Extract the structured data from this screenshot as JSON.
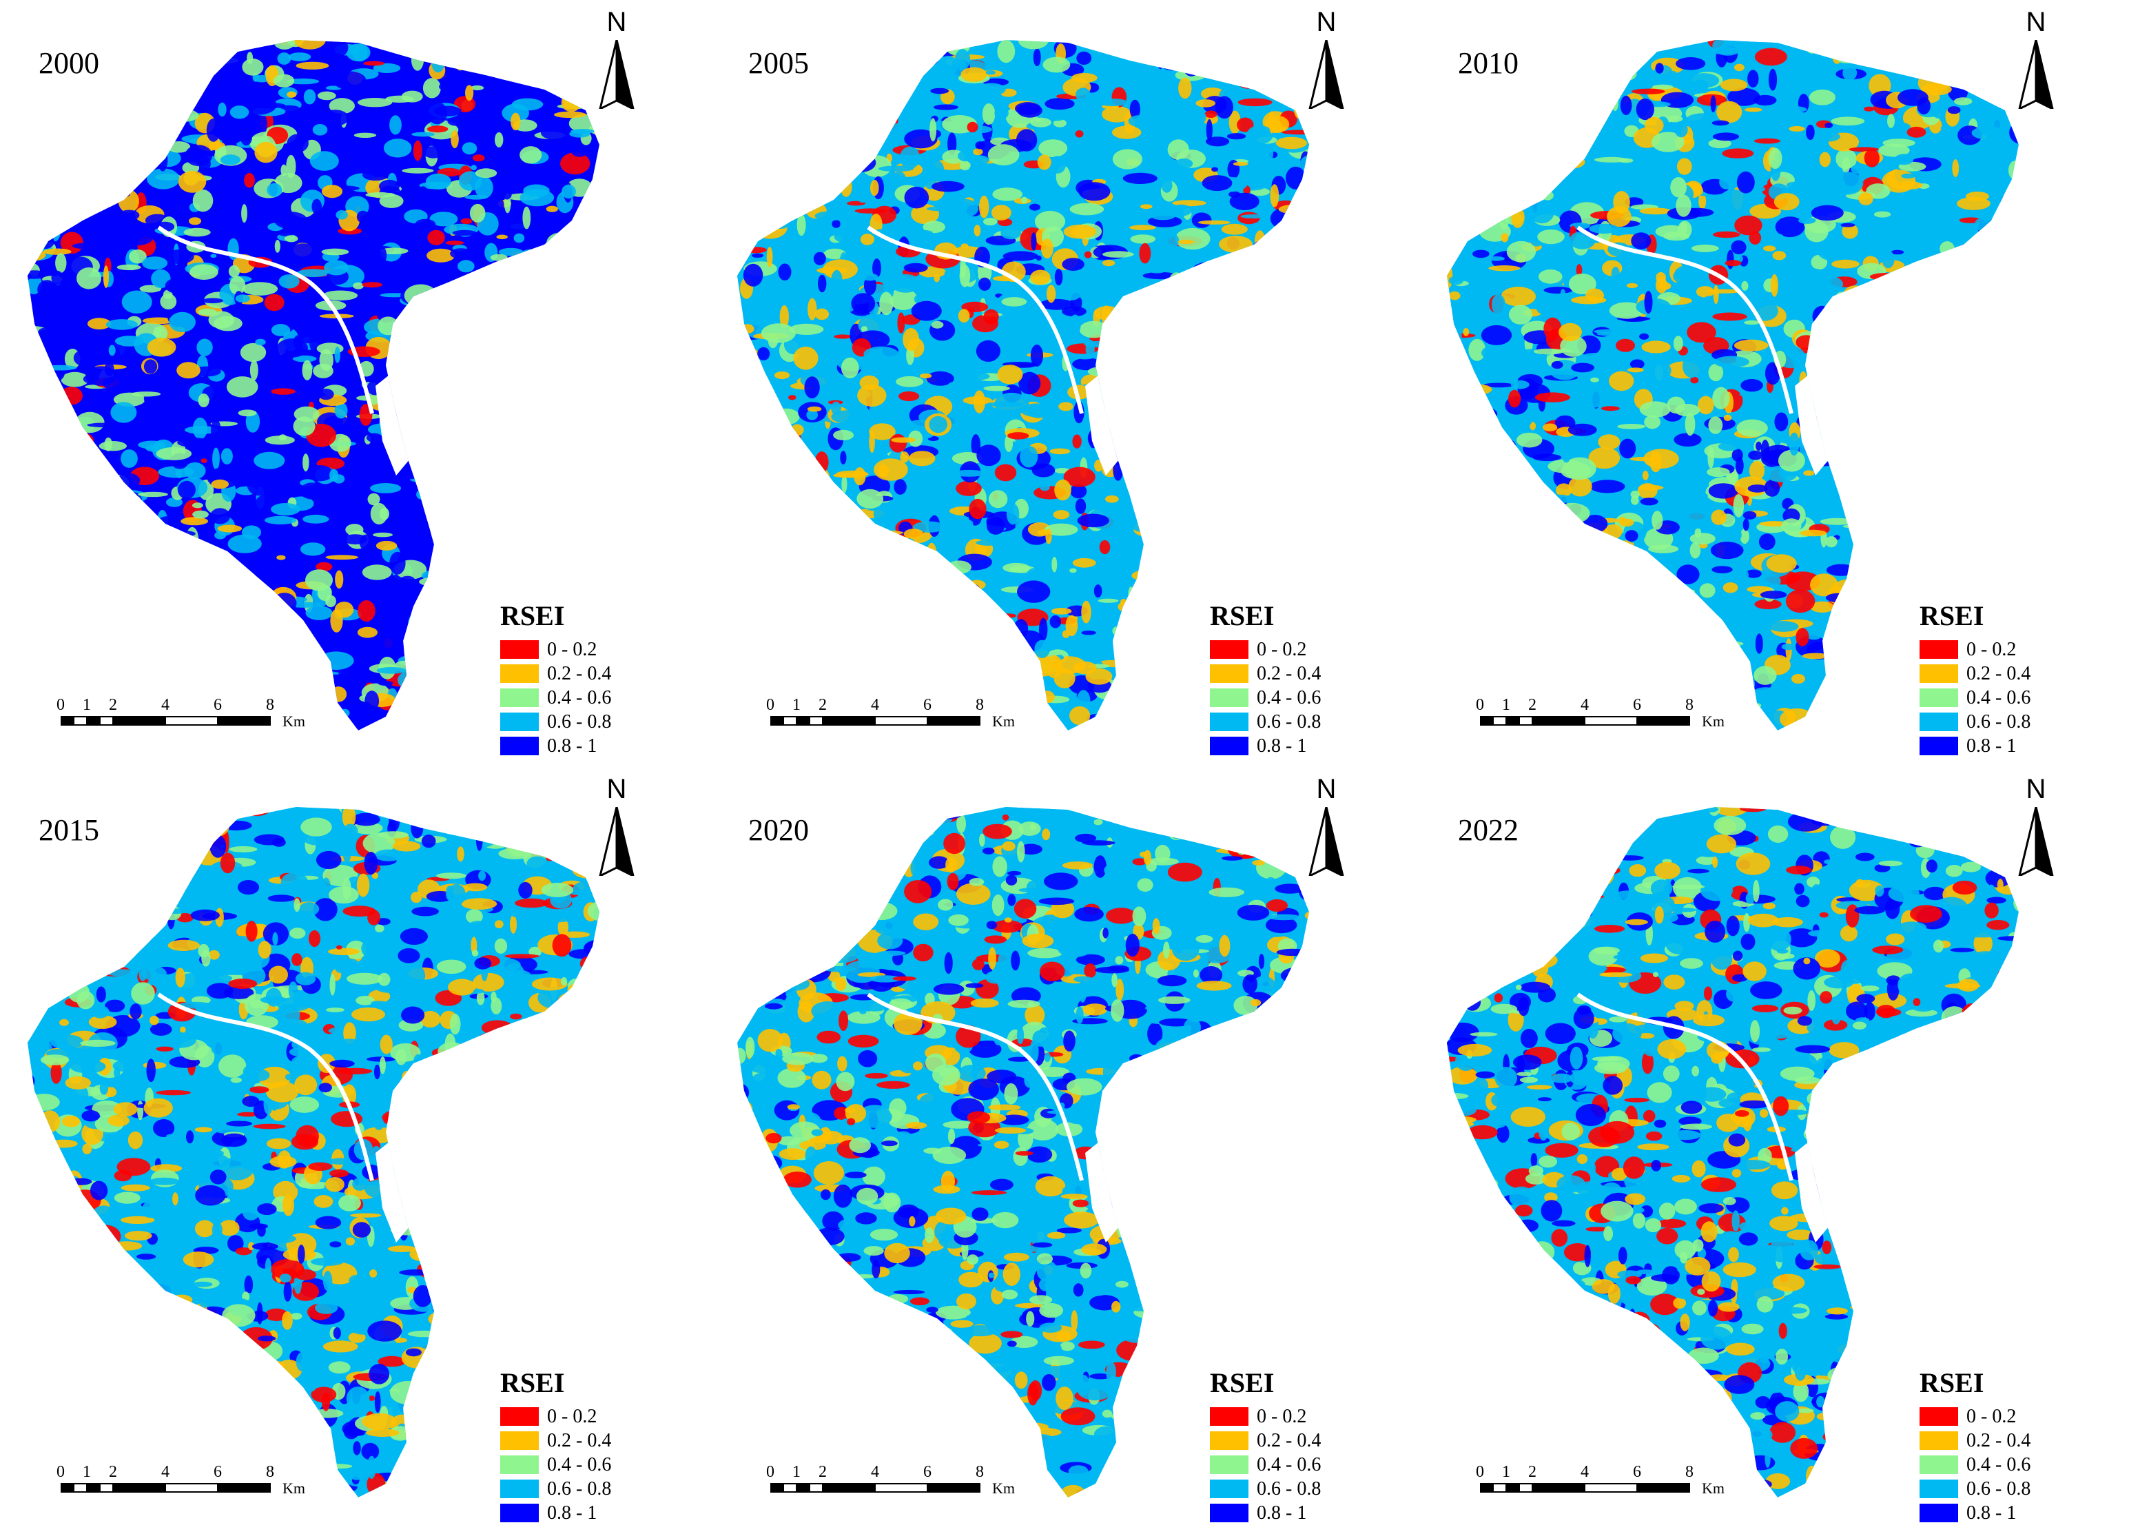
{
  "legend": {
    "title": "RSEI",
    "classes": [
      {
        "label": "0 - 0.2",
        "color": "#ff0000"
      },
      {
        "label": "0.2 - 0.4",
        "color": "#ffc000"
      },
      {
        "label": "0.4 - 0.6",
        "color": "#8ff58f"
      },
      {
        "label": "0.6 - 0.8",
        "color": "#00b8f2"
      },
      {
        "label": "0.8 - 1",
        "color": "#0000ff"
      }
    ]
  },
  "north_arrow": {
    "label": "N"
  },
  "scale_bar": {
    "ticks": [
      "0",
      "1",
      "2",
      "4",
      "6",
      "8"
    ],
    "unit": "Km"
  },
  "panels": [
    {
      "year": "2000",
      "dominant_class": 4
    },
    {
      "year": "2005",
      "dominant_class": 3
    },
    {
      "year": "2010",
      "dominant_class": 3
    },
    {
      "year": "2015",
      "dominant_class": 3
    },
    {
      "year": "2020",
      "dominant_class": 3
    },
    {
      "year": "2022",
      "dominant_class": 3
    }
  ]
}
